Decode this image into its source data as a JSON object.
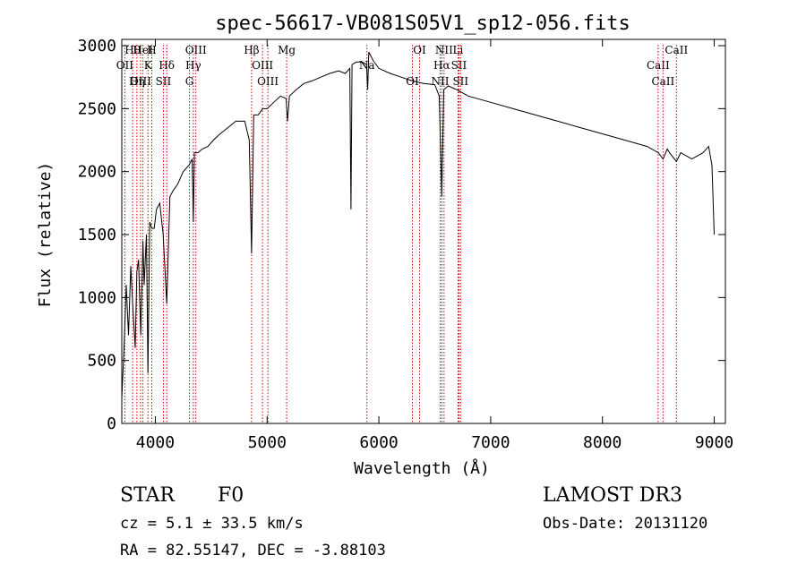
{
  "chart_data": {
    "type": "line",
    "title": "spec-56617-VB081S05V1_sp12-056.fits",
    "xlabel": "Wavelength (Å)",
    "ylabel": "Flux (relative)",
    "xlim": [
      3700,
      9100
    ],
    "ylim": [
      0,
      3050
    ],
    "xticks": [
      4000,
      5000,
      6000,
      7000,
      8000,
      9000
    ],
    "yticks": [
      0,
      500,
      1000,
      1500,
      2000,
      2500,
      3000
    ],
    "grid": false,
    "series": [
      {
        "name": "flux",
        "x": [
          3700,
          3720,
          3740,
          3760,
          3780,
          3800,
          3820,
          3835,
          3850,
          3870,
          3889,
          3900,
          3920,
          3934,
          3950,
          3968,
          3990,
          4010,
          4040,
          4070,
          4102,
          4130,
          4160,
          4200,
          4250,
          4300,
          4330,
          4340,
          4350,
          4380,
          4420,
          4470,
          4520,
          4580,
          4650,
          4720,
          4800,
          4840,
          4861,
          4880,
          4920,
          4960,
          5000,
          5060,
          5120,
          5170,
          5183,
          5200,
          5260,
          5330,
          5400,
          5480,
          5560,
          5640,
          5700,
          5740,
          5750,
          5760,
          5800,
          5850,
          5890,
          5900,
          5910,
          5950,
          6000,
          6050,
          6100,
          6200,
          6300,
          6400,
          6500,
          6540,
          6563,
          6580,
          6620,
          6700,
          6800,
          7000,
          7200,
          7400,
          7600,
          7800,
          8000,
          8200,
          8400,
          8500,
          8542,
          8580,
          8600,
          8662,
          8700,
          8800,
          8900,
          8950,
          8980,
          9000
        ],
        "y": [
          200,
          600,
          1100,
          700,
          1250,
          900,
          600,
          1200,
          1300,
          700,
          1450,
          1100,
          1500,
          400,
          1600,
          1550,
          1550,
          1700,
          1750,
          1500,
          950,
          1800,
          1850,
          1900,
          2000,
          2050,
          2100,
          1600,
          2150,
          2150,
          2180,
          2200,
          2250,
          2300,
          2350,
          2400,
          2400,
          2250,
          1350,
          2450,
          2450,
          2500,
          2500,
          2550,
          2600,
          2580,
          2400,
          2600,
          2650,
          2700,
          2720,
          2750,
          2780,
          2800,
          2780,
          2820,
          1700,
          2850,
          2870,
          2870,
          2850,
          2650,
          2950,
          2880,
          2820,
          2800,
          2780,
          2750,
          2720,
          2700,
          2690,
          2600,
          1800,
          2650,
          2680,
          2650,
          2600,
          2550,
          2500,
          2450,
          2400,
          2350,
          2300,
          2250,
          2200,
          2150,
          2100,
          2180,
          2150,
          2080,
          2150,
          2100,
          2150,
          2200,
          2050,
          1500
        ]
      }
    ],
    "lines": [
      {
        "name": "Hθ",
        "x": 3797
      },
      {
        "name": "OII",
        "x": 3727
      },
      {
        "name": "OIII",
        "x": 3868
      },
      {
        "name": "HeI",
        "x": 3889
      },
      {
        "name": "K",
        "x": 3934
      },
      {
        "name": "Hη",
        "x": 3835
      },
      {
        "name": "H",
        "x": 3968
      },
      {
        "name": "Hδ",
        "x": 4102
      },
      {
        "name": "SII",
        "x": 4072
      },
      {
        "name": "OIII",
        "x": 4363
      },
      {
        "name": "Hγ",
        "x": 4340
      },
      {
        "name": "G",
        "x": 4305
      },
      {
        "name": "Hβ",
        "x": 4861
      },
      {
        "name": "OIII",
        "x": 4959
      },
      {
        "name": "OIII",
        "x": 5007
      },
      {
        "name": "Mg",
        "x": 5175
      },
      {
        "name": "Na",
        "x": 5893
      },
      {
        "name": "OI",
        "x": 6300
      },
      {
        "name": "OI",
        "x": 6364
      },
      {
        "name": "Hα",
        "x": 6563
      },
      {
        "name": "NII",
        "x": 6548
      },
      {
        "name": "NII",
        "x": 6583
      },
      {
        "name": "SII",
        "x": 6716
      },
      {
        "name": "SII",
        "x": 6731
      },
      {
        "name": "Li",
        "x": 6708
      },
      {
        "name": "CaII",
        "x": 8498
      },
      {
        "name": "CaII",
        "x": 8542
      },
      {
        "name": "CaII",
        "x": 8662
      }
    ]
  },
  "info": {
    "object_class": "STAR",
    "subclass": "F0",
    "survey": "LAMOST DR3",
    "redshift_text": "cz = 5.1 ± 33.5 km/s",
    "obs_date_text": "Obs-Date: 20131120",
    "coords_text": "RA =  82.55147, DEC =  -3.88103"
  }
}
